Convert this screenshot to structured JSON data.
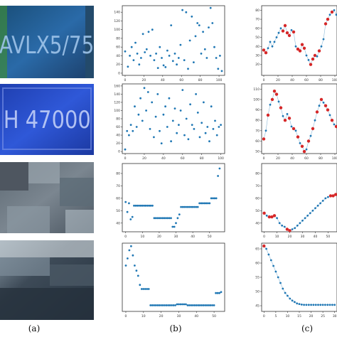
{
  "figure": {
    "captions": [
      "(a)",
      "(b)",
      "(c)"
    ],
    "rows": [
      {
        "image": {
          "text": "AVLX5/75",
          "theme": "plate-blue-green"
        }
      },
      {
        "image": {
          "text": "H 47000",
          "theme": "plate-blue"
        }
      },
      {
        "image": {
          "text": "",
          "theme": "blurry-gray"
        }
      },
      {
        "image": {
          "text": "",
          "theme": "blurry-dark"
        }
      }
    ],
    "colors": {
      "point": "#1f77b4",
      "highlight": "#d62728",
      "axis": "#333333",
      "line": "#1f77b4"
    }
  },
  "chart_data": [
    {
      "type": "scatter",
      "panel": "row1-b",
      "x_ticks": [
        0,
        20,
        40,
        60,
        80,
        100
      ],
      "y_ticks": [
        0,
        20,
        40,
        60,
        80,
        100,
        120,
        140
      ],
      "xlim": [
        -3,
        106
      ],
      "ylim": [
        -5,
        155
      ],
      "x": [
        0,
        3,
        5,
        7,
        9,
        11,
        13,
        15,
        17,
        19,
        21,
        23,
        25,
        27,
        29,
        31,
        33,
        35,
        37,
        39,
        41,
        43,
        45,
        47,
        49,
        51,
        53,
        55,
        57,
        59,
        61,
        63,
        65,
        67,
        69,
        71,
        73,
        75,
        77,
        79,
        81,
        83,
        85,
        87,
        89,
        91,
        93,
        95,
        97,
        99,
        101,
        103
      ],
      "y": [
        50,
        15,
        40,
        60,
        30,
        70,
        45,
        20,
        35,
        90,
        48,
        55,
        95,
        40,
        100,
        30,
        45,
        12,
        60,
        35,
        18,
        14,
        52,
        40,
        110,
        28,
        45,
        20,
        35,
        65,
        145,
        30,
        140,
        10,
        75,
        130,
        25,
        85,
        115,
        110,
        45,
        95,
        55,
        35,
        105,
        150,
        115,
        60,
        35,
        10,
        40,
        5
      ]
    },
    {
      "type": "scatter",
      "panel": "row2-b",
      "x_ticks": [
        0,
        20,
        40,
        60,
        80,
        100
      ],
      "y_ticks": [
        0,
        20,
        40,
        60,
        80,
        100,
        120,
        140,
        160
      ],
      "xlim": [
        -3,
        104
      ],
      "ylim": [
        -5,
        165
      ],
      "x": [
        0,
        2,
        4,
        6,
        8,
        10,
        12,
        14,
        16,
        18,
        20,
        22,
        24,
        26,
        28,
        30,
        32,
        34,
        36,
        38,
        40,
        42,
        44,
        46,
        48,
        50,
        52,
        54,
        56,
        58,
        60,
        62,
        64,
        66,
        68,
        70,
        72,
        74,
        76,
        78,
        80,
        82,
        84,
        86,
        88,
        90,
        92,
        94,
        96,
        98,
        100
      ],
      "y": [
        5,
        50,
        40,
        65,
        50,
        110,
        60,
        90,
        130,
        75,
        155,
        100,
        145,
        55,
        120,
        35,
        85,
        140,
        50,
        20,
        90,
        110,
        60,
        130,
        25,
        75,
        105,
        45,
        65,
        100,
        150,
        40,
        80,
        30,
        115,
        65,
        55,
        140,
        95,
        35,
        70,
        120,
        45,
        60,
        25,
        110,
        55,
        75,
        40,
        60,
        65
      ]
    },
    {
      "type": "scatter",
      "panel": "row3-b",
      "x_ticks": [
        0,
        10,
        20,
        30,
        40,
        50
      ],
      "y_ticks": [
        40,
        50,
        60,
        70,
        80
      ],
      "xlim": [
        -2,
        59
      ],
      "ylim": [
        33,
        88
      ],
      "x": [
        0,
        1,
        2,
        3,
        4,
        5,
        6,
        7,
        8,
        9,
        10,
        11,
        12,
        13,
        14,
        15,
        16,
        17,
        18,
        19,
        20,
        21,
        22,
        23,
        24,
        25,
        26,
        27,
        28,
        29,
        30,
        31,
        32,
        33,
        34,
        35,
        36,
        37,
        38,
        39,
        40,
        41,
        42,
        43,
        44,
        45,
        46,
        47,
        48,
        49,
        50,
        51,
        52,
        53,
        54,
        55,
        56
      ],
      "y": [
        57,
        49,
        56,
        43,
        45,
        54,
        54,
        54,
        54,
        54,
        54,
        54,
        54,
        54,
        54,
        54,
        54,
        44,
        44,
        44,
        44,
        44,
        44,
        44,
        44,
        44,
        44,
        44,
        37,
        37,
        40,
        44,
        47,
        53,
        53,
        53,
        53,
        53,
        53,
        53,
        53,
        53,
        53,
        53,
        56,
        56,
        56,
        56,
        56,
        56,
        56,
        60,
        60,
        60,
        60,
        78,
        84
      ]
    },
    {
      "type": "scatter",
      "panel": "row4-b",
      "x_ticks": [
        0,
        10,
        20,
        30,
        40,
        50
      ],
      "y_ticks": [],
      "xlim": [
        -2,
        56
      ],
      "ylim": [
        40,
        107
      ],
      "x": [
        0,
        1,
        2,
        3,
        4,
        5,
        6,
        7,
        8,
        9,
        10,
        11,
        12,
        13,
        14,
        15,
        16,
        17,
        18,
        19,
        20,
        21,
        22,
        23,
        24,
        25,
        26,
        27,
        28,
        29,
        30,
        31,
        32,
        33,
        34,
        35,
        36,
        37,
        38,
        39,
        40,
        41,
        42,
        43,
        44,
        45,
        46,
        47,
        48,
        49,
        50,
        51,
        52,
        53,
        54
      ],
      "y": [
        85,
        92,
        100,
        104,
        95,
        85,
        80,
        75,
        66,
        62,
        62,
        62,
        62,
        62,
        46,
        46,
        46,
        46,
        46,
        46,
        46,
        46,
        46,
        46,
        46,
        46,
        46,
        46,
        46,
        47,
        47,
        47,
        47,
        47,
        47,
        46,
        46,
        46,
        46,
        46,
        46,
        46,
        46,
        46,
        46,
        46,
        46,
        46,
        46,
        46,
        46,
        58,
        58,
        58,
        59
      ]
    },
    {
      "type": "line",
      "panel": "row1-c",
      "x_ticks": [
        0,
        20,
        40,
        60,
        80,
        100
      ],
      "y_ticks": [
        20,
        30,
        40,
        50,
        60,
        70,
        80
      ],
      "xlim": [
        -3,
        103
      ],
      "ylim": [
        8,
        85
      ],
      "x": [
        0,
        3,
        6,
        9,
        12,
        15,
        18,
        21,
        24,
        27,
        30,
        33,
        36,
        39,
        42,
        45,
        48,
        51,
        54,
        57,
        60,
        63,
        66,
        69,
        72,
        75,
        78,
        81,
        84,
        87,
        90,
        93,
        96,
        99,
        102
      ],
      "y": [
        36,
        33,
        38,
        45,
        40,
        45,
        50,
        55,
        60,
        57,
        63,
        55,
        52,
        58,
        56,
        40,
        37,
        35,
        42,
        38,
        30,
        25,
        20,
        26,
        30,
        29,
        35,
        40,
        48,
        65,
        70,
        75,
        78,
        80,
        75
      ],
      "highlight_index": [
        0,
        1,
        9,
        10,
        11,
        12,
        14,
        16,
        17,
        18,
        19,
        22,
        23,
        24,
        26,
        29,
        30,
        32
      ]
    },
    {
      "type": "line",
      "panel": "row2-c",
      "x_ticks": [
        0,
        20,
        40,
        60,
        80,
        100
      ],
      "y_ticks": [
        50,
        60,
        70,
        80,
        90,
        100,
        110
      ],
      "xlim": [
        -3,
        103
      ],
      "ylim": [
        48,
        115
      ],
      "x": [
        0,
        3,
        6,
        9,
        12,
        15,
        18,
        21,
        24,
        27,
        30,
        33,
        36,
        39,
        42,
        45,
        48,
        51,
        54,
        57,
        60,
        63,
        66,
        69,
        72,
        75,
        78,
        81,
        84,
        87,
        90,
        93,
        96,
        99,
        102
      ],
      "y": [
        62,
        70,
        85,
        95,
        100,
        108,
        105,
        98,
        92,
        84,
        80,
        86,
        82,
        74,
        72,
        70,
        64,
        58,
        55,
        50,
        52,
        60,
        65,
        72,
        80,
        88,
        94,
        100,
        97,
        94,
        90,
        85,
        80,
        76,
        74
      ],
      "highlight_index": [
        0,
        2,
        4,
        5,
        6,
        8,
        10,
        12,
        14,
        16,
        18,
        19,
        21,
        23,
        25,
        27,
        29,
        30,
        32,
        34
      ]
    },
    {
      "type": "line",
      "panel": "row3-c",
      "x_ticks": [
        0,
        10,
        20,
        30,
        40,
        50
      ],
      "y_ticks": [
        40,
        50,
        60,
        70,
        80
      ],
      "xlim": [
        -2,
        57
      ],
      "ylim": [
        33,
        88
      ],
      "x": [
        0,
        2,
        4,
        6,
        8,
        10,
        12,
        14,
        16,
        18,
        20,
        22,
        24,
        26,
        28,
        30,
        32,
        34,
        36,
        38,
        40,
        42,
        44,
        46,
        48,
        50,
        52,
        54,
        56
      ],
      "y": [
        48,
        46,
        45,
        45,
        46,
        44,
        40,
        38,
        37,
        35,
        34,
        35,
        36,
        38,
        40,
        42,
        44,
        46,
        48,
        50,
        52,
        54,
        56,
        58,
        60,
        61,
        62,
        62,
        63
      ],
      "highlight_index": [
        0,
        2,
        3,
        4,
        9,
        10,
        26,
        27,
        28
      ]
    },
    {
      "type": "line",
      "panel": "row4-c",
      "x_ticks": [
        0,
        5,
        10,
        15,
        20,
        25,
        30
      ],
      "y_ticks": [
        45,
        50,
        55,
        60,
        65
      ],
      "xlim": [
        -1,
        31
      ],
      "ylim": [
        43,
        67
      ],
      "x": [
        0,
        1,
        2,
        3,
        4,
        5,
        6,
        7,
        8,
        9,
        10,
        11,
        12,
        13,
        14,
        15,
        16,
        17,
        18,
        19,
        20,
        21,
        22,
        23,
        24,
        25,
        26,
        27,
        28,
        29,
        30
      ],
      "y": [
        66,
        65,
        63,
        61,
        59,
        57,
        55,
        53,
        51,
        49.5,
        48.5,
        47.5,
        46.8,
        46.3,
        45.8,
        45.6,
        45.4,
        45.3,
        45.3,
        45.3,
        45.3,
        45.3,
        45.3,
        45.3,
        45.3,
        45.3,
        45.3,
        45.3,
        45.3,
        45.3,
        45.3
      ],
      "highlight_index": [
        0
      ]
    }
  ]
}
